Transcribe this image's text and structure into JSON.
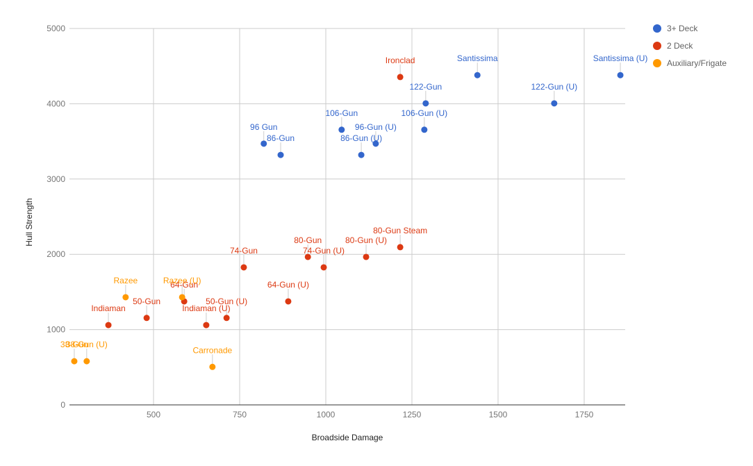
{
  "chart_data": {
    "type": "scatter",
    "title": "",
    "xlabel": "Broadside Damage",
    "ylabel": "Hull Strength",
    "xlim": [
      256,
      1869
    ],
    "ylim": [
      0,
      5000
    ],
    "x_ticks": [
      500,
      750,
      1000,
      1250,
      1500,
      1750
    ],
    "y_ticks": [
      0,
      1000,
      2000,
      3000,
      4000,
      5000
    ],
    "grid": true,
    "legend_position": "right",
    "series": [
      {
        "name": "3+ Deck",
        "color": "#3366cc",
        "points": [
          {
            "label": "96 Gun",
            "x": 820,
            "y": 3470
          },
          {
            "label": "86-Gun",
            "x": 869,
            "y": 3320
          },
          {
            "label": "106-Gun",
            "x": 1046,
            "y": 3655
          },
          {
            "label": "96-Gun (U)",
            "x": 1145,
            "y": 3470
          },
          {
            "label": "86-Gun (U)",
            "x": 1103,
            "y": 3320
          },
          {
            "label": "122-Gun",
            "x": 1290,
            "y": 4005
          },
          {
            "label": "106-Gun (U)",
            "x": 1286,
            "y": 3655
          },
          {
            "label": "Santissima",
            "x": 1440,
            "y": 4380
          },
          {
            "label": "122-Gun (U)",
            "x": 1663,
            "y": 4005
          },
          {
            "label": "Santissima (U)",
            "x": 1855,
            "y": 4380
          }
        ]
      },
      {
        "name": "2 Deck",
        "color": "#dc3912",
        "points": [
          {
            "label": "Ironclad",
            "x": 1216,
            "y": 4355
          },
          {
            "label": "80-Gun Steam",
            "x": 1216,
            "y": 2095
          },
          {
            "label": "80-Gun (U)",
            "x": 1117,
            "y": 1965
          },
          {
            "label": "80-Gun",
            "x": 948,
            "y": 1965
          },
          {
            "label": "74-Gun (U)",
            "x": 994,
            "y": 1827
          },
          {
            "label": "74-Gun",
            "x": 762,
            "y": 1827
          },
          {
            "label": "64-Gun (U)",
            "x": 891,
            "y": 1375
          },
          {
            "label": "64-Gun",
            "x": 589,
            "y": 1375
          },
          {
            "label": "50-Gun",
            "x": 480,
            "y": 1155
          },
          {
            "label": "50-Gun (U)",
            "x": 712,
            "y": 1155
          },
          {
            "label": "Indiaman",
            "x": 369,
            "y": 1060
          },
          {
            "label": "Indiaman (U)",
            "x": 653,
            "y": 1060
          }
        ]
      },
      {
        "name": "Auxiliary/Frigate",
        "color": "#ff9900",
        "points": [
          {
            "label": "Razee",
            "x": 419,
            "y": 1430
          },
          {
            "label": "Razee (U)",
            "x": 583,
            "y": 1430
          },
          {
            "label": "38-Gun",
            "x": 270,
            "y": 580
          },
          {
            "label": "38-Gun (U)",
            "x": 306,
            "y": 580
          },
          {
            "label": "Carronade",
            "x": 671,
            "y": 505
          }
        ]
      }
    ]
  }
}
